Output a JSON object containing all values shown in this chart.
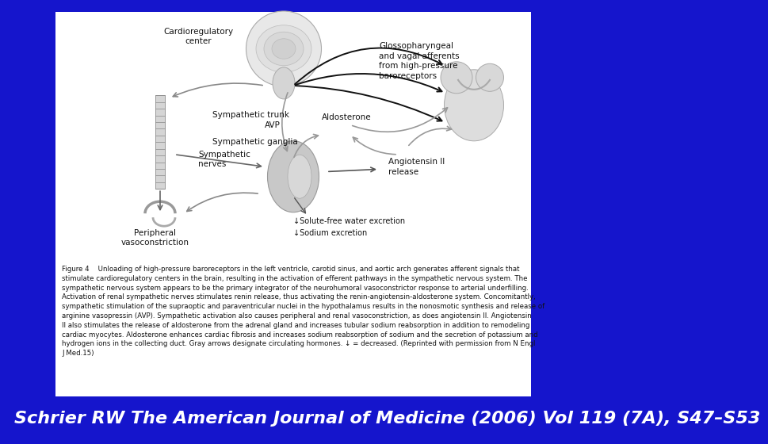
{
  "slide_bg": "#1515cc",
  "content_bg": "#ffffff",
  "footer_text": "Schrier RW The American Journal of Medicine (2006) Vol 119 (7A), S47–S53",
  "footer_color": "#ffffff",
  "footer_fontsize": 16,
  "caption_fontsize": 6.2,
  "figure_caption": "Figure 4    Unloading of high-pressure baroreceptors in the left ventricle, carotid sinus, and aortic arch generates afferent signals that\nstimulate cardioregulatory centers in the brain, resulting in the activation of efferent pathways in the sympathetic nervous system. The\nsympathetic nervous system appears to be the primary integrator of the neurohumoral vasoconstrictor response to arterial underfilling.\nActivation of renal sympathetic nerves stimulates renin release, thus activating the renin-angiotensin-aldosterone system. Concomitantly,\nsympathetic stimulation of the supraoptic and paraventricular nuclei in the hypothalamus results in the nonosmotic synthesis and release of\narginine vasopressin (AVP). Sympathetic activation also causes peripheral and renal vasoconstriction, as does angiotensin II. Angiotensin\nII also stimulates the release of aldosterone from the adrenal gland and increases tubular sodium reabsorption in addition to remodeling\ncardiac myocytes. Aldosterone enhances cardiac fibrosis and increases sodium reabsorption of sodium and the secretion of potassium and\nhydrogen ions in the collecting duct. Gray arrows designate circulating hormones. ↓ = decreased. (Reprinted with permission from N Engl\nJ Med.15)"
}
